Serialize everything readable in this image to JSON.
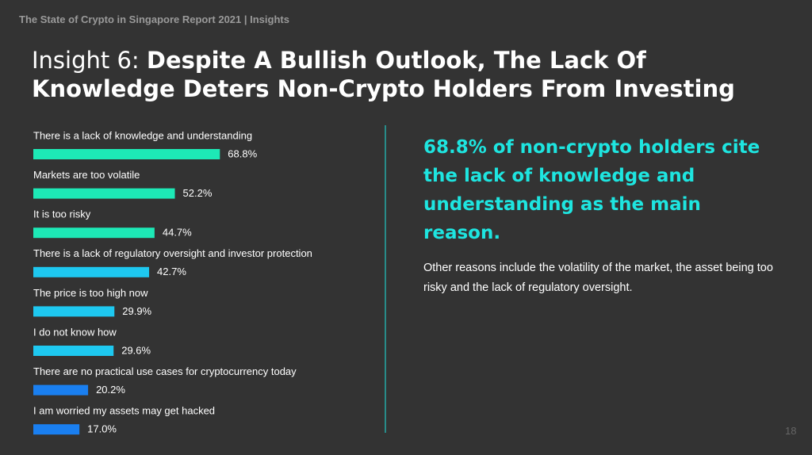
{
  "header": "The State of Crypto in Singapore Report 2021 | Insights",
  "title_prefix": "Insight 6:",
  "title": "Despite A Bullish Outlook, The Lack Of Knowledge Deters Non-Crypto Holders From Investing",
  "chart_data": {
    "type": "bar",
    "orientation": "horizontal",
    "categories": [
      "There is a lack of knowledge and understanding",
      "Markets are too volatile",
      "It is too risky",
      "There is a lack of regulatory oversight and investor protection",
      "The price is too high now",
      "I do not know how",
      "There are no practical use cases for cryptocurrency today",
      "I am worried my assets may get hacked"
    ],
    "values": [
      68.8,
      52.2,
      44.7,
      42.7,
      29.9,
      29.6,
      20.2,
      17.0
    ],
    "value_labels": [
      "68.8%",
      "52.2%",
      "44.7%",
      "42.7%",
      "29.9%",
      "29.6%",
      "20.2%",
      "17.0%"
    ],
    "colors": [
      "#1de9b6",
      "#1de9b6",
      "#1de9b6",
      "#1ec8f0",
      "#1ec8f0",
      "#1ec8f0",
      "#1a7ff0",
      "#1a7ff0"
    ]
  },
  "highlight": "68.8% of non-crypto holders cite the lack of knowledge and understanding as the main reason.",
  "body": "Other reasons include the volatility of the market, the asset being too risky and the lack of regulatory oversight.",
  "page_number": "18"
}
